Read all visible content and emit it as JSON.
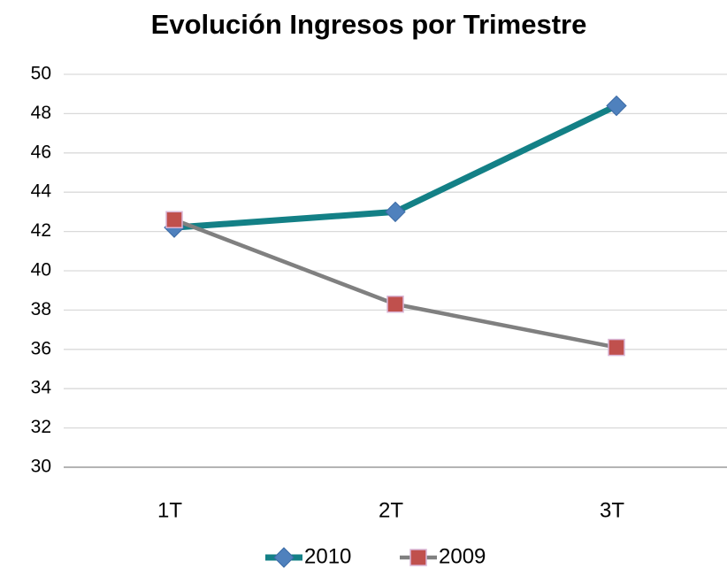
{
  "chart_data": {
    "type": "line",
    "title": "Evolución Ingresos por Trimestre",
    "categories": [
      "1T",
      "2T",
      "3T"
    ],
    "series": [
      {
        "name": "2010",
        "color": "#138086",
        "marker_color": "#4f81bd",
        "marker": "diamond",
        "values": [
          42.2,
          43.0,
          48.4
        ]
      },
      {
        "name": "2009",
        "color": "#808080",
        "marker_color": "#c0504d",
        "marker": "square",
        "values": [
          42.6,
          38.3,
          36.1
        ]
      }
    ],
    "ylim": [
      30,
      50
    ],
    "yticks": [
      30,
      32,
      34,
      36,
      38,
      40,
      42,
      44,
      46,
      48,
      50
    ],
    "grid": true,
    "legend": "bottom"
  }
}
